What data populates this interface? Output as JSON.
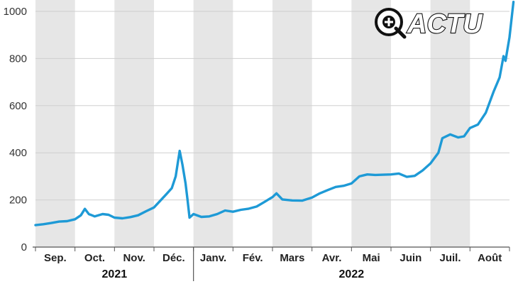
{
  "logo": {
    "text": "ACTU",
    "mark": "plus-circle"
  },
  "chart_data": {
    "type": "line",
    "title": "",
    "xlabel": "",
    "ylabel": "",
    "ylim": [
      0,
      1000
    ],
    "yticks": [
      0,
      200,
      400,
      600,
      800,
      1000
    ],
    "month_labels": [
      "Sep.",
      "Oct.",
      "Nov.",
      "Déc.",
      "Janv.",
      "Fév.",
      "Mars",
      "Avr.",
      "Mai",
      "Juin",
      "Juil.",
      "Août"
    ],
    "year_labels": [
      {
        "label": "2021",
        "months": [
          "Sep.",
          "Oct.",
          "Nov.",
          "Déc."
        ]
      },
      {
        "label": "2022",
        "months": [
          "Janv.",
          "Fév.",
          "Mars",
          "Avr.",
          "Mai",
          "Juin",
          "Juil.",
          "Août"
        ]
      }
    ],
    "x_unit": "month index (0 = start of Sep. 2021)",
    "grid": "alternating vertical month bands, horizontal gridlines",
    "colors": {
      "line": "#1e9ad6",
      "band": "#e6e6e6",
      "grid": "#cfcfcf"
    },
    "series": [
      {
        "values": [
          [
            0.0,
            93
          ],
          [
            0.2,
            97
          ],
          [
            0.4,
            102
          ],
          [
            0.6,
            108
          ],
          [
            0.8,
            110
          ],
          [
            1.0,
            118
          ],
          [
            1.15,
            135
          ],
          [
            1.25,
            162
          ],
          [
            1.35,
            140
          ],
          [
            1.5,
            130
          ],
          [
            1.7,
            140
          ],
          [
            1.85,
            137
          ],
          [
            2.0,
            125
          ],
          [
            2.2,
            122
          ],
          [
            2.4,
            127
          ],
          [
            2.6,
            135
          ],
          [
            2.8,
            152
          ],
          [
            3.0,
            168
          ],
          [
            3.15,
            195
          ],
          [
            3.3,
            222
          ],
          [
            3.45,
            250
          ],
          [
            3.55,
            300
          ],
          [
            3.65,
            408
          ],
          [
            3.72,
            350
          ],
          [
            3.8,
            270
          ],
          [
            3.85,
            200
          ],
          [
            3.9,
            125
          ],
          [
            4.0,
            140
          ],
          [
            4.2,
            128
          ],
          [
            4.4,
            130
          ],
          [
            4.6,
            140
          ],
          [
            4.8,
            155
          ],
          [
            5.0,
            150
          ],
          [
            5.2,
            158
          ],
          [
            5.4,
            163
          ],
          [
            5.6,
            172
          ],
          [
            5.8,
            192
          ],
          [
            5.9,
            202
          ],
          [
            6.0,
            212
          ],
          [
            6.1,
            228
          ],
          [
            6.25,
            202
          ],
          [
            6.5,
            198
          ],
          [
            6.75,
            197
          ],
          [
            7.0,
            210
          ],
          [
            7.2,
            228
          ],
          [
            7.4,
            242
          ],
          [
            7.6,
            255
          ],
          [
            7.8,
            260
          ],
          [
            8.0,
            270
          ],
          [
            8.2,
            300
          ],
          [
            8.4,
            308
          ],
          [
            8.6,
            306
          ],
          [
            8.8,
            307
          ],
          [
            9.0,
            308
          ],
          [
            9.2,
            312
          ],
          [
            9.4,
            298
          ],
          [
            9.6,
            302
          ],
          [
            9.8,
            325
          ],
          [
            10.0,
            355
          ],
          [
            10.2,
            400
          ],
          [
            10.3,
            462
          ],
          [
            10.5,
            478
          ],
          [
            10.7,
            465
          ],
          [
            10.85,
            470
          ],
          [
            11.0,
            505
          ],
          [
            11.2,
            520
          ],
          [
            11.4,
            570
          ],
          [
            11.6,
            660
          ],
          [
            11.75,
            720
          ],
          [
            11.85,
            810
          ],
          [
            11.9,
            790
          ],
          [
            12.0,
            890
          ],
          [
            12.1,
            1040
          ]
        ]
      }
    ]
  }
}
